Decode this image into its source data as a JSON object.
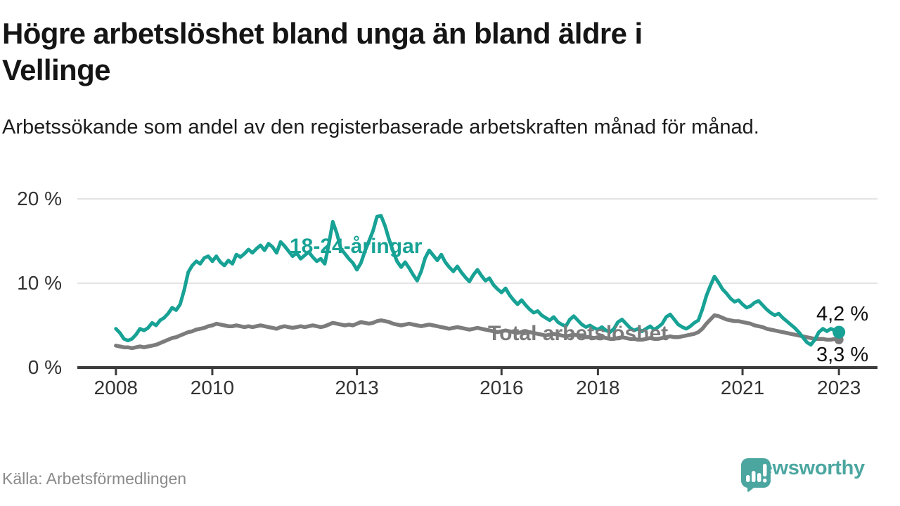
{
  "header": {
    "title_lines": [
      "Högre arbetslöshet bland unga än bland äldre i",
      "Vellinge"
    ],
    "subtitle": "Arbetssökande som andel av den registerbaserade arbetskraften månad för månad."
  },
  "footer": {
    "source": "Källa: Arbetsförmedlingen",
    "brand": "Newsworthy",
    "brand_icon": "speech-bubble-with-bar-chart",
    "brand_color": "#4BA6A0"
  },
  "chart_data": {
    "type": "line",
    "unit": "%",
    "frequency": "monthly",
    "x_start": "2008-01",
    "x_end": "2023-01",
    "xlim": [
      2007.2,
      2023.8
    ],
    "ylim": [
      0,
      20
    ],
    "grid": "horizontal",
    "y_ticks": [
      {
        "value": 0,
        "label": "0 %"
      },
      {
        "value": 10,
        "label": "10 %"
      },
      {
        "value": 20,
        "label": "20 %"
      }
    ],
    "x_ticks": [
      {
        "year": 2008,
        "label": "2008"
      },
      {
        "year": 2010,
        "label": "2010"
      },
      {
        "year": 2013,
        "label": "2013"
      },
      {
        "year": 2016,
        "label": "2016"
      },
      {
        "year": 2018,
        "label": "2018"
      },
      {
        "year": 2021,
        "label": "2021"
      },
      {
        "year": 2023,
        "label": "2023"
      }
    ],
    "series": [
      {
        "name": "18-24-åringar",
        "color": "#17A295",
        "end_value": 4.2,
        "end_label": "4,2 %",
        "values": [
          4.6,
          4.1,
          3.4,
          3.2,
          3.4,
          3.9,
          4.6,
          4.4,
          4.7,
          5.3,
          5.0,
          5.6,
          5.9,
          6.4,
          7.1,
          6.8,
          7.5,
          9.2,
          11.3,
          12.1,
          12.6,
          12.3,
          13.0,
          13.2,
          12.6,
          13.2,
          12.5,
          12.1,
          12.7,
          12.3,
          13.4,
          13.1,
          13.5,
          14.0,
          13.6,
          14.1,
          14.5,
          13.9,
          14.7,
          14.3,
          13.6,
          14.9,
          14.4,
          13.8,
          13.2,
          13.6,
          12.9,
          13.3,
          13.7,
          13.1,
          12.6,
          12.9,
          12.3,
          14.6,
          17.3,
          15.9,
          14.1,
          13.5,
          12.9,
          12.4,
          11.6,
          12.4,
          13.8,
          15.0,
          16.2,
          17.9,
          18.0,
          16.8,
          15.2,
          13.8,
          12.6,
          11.9,
          12.5,
          11.8,
          11.0,
          10.3,
          11.4,
          13.0,
          13.9,
          13.3,
          12.7,
          13.4,
          12.5,
          11.9,
          11.4,
          12.0,
          11.3,
          10.7,
          10.2,
          11.0,
          11.6,
          10.9,
          10.3,
          10.6,
          9.8,
          9.3,
          8.9,
          9.4,
          8.6,
          8.0,
          7.5,
          8.0,
          7.4,
          6.9,
          6.5,
          6.7,
          6.2,
          5.9,
          5.6,
          6.0,
          5.4,
          5.1,
          4.9,
          5.7,
          6.1,
          5.6,
          5.1,
          4.8,
          5.0,
          4.7,
          4.5,
          4.8,
          4.4,
          4.2,
          4.6,
          5.4,
          5.7,
          5.2,
          4.7,
          4.4,
          4.6,
          4.3,
          4.6,
          4.9,
          4.5,
          4.8,
          5.2,
          6.0,
          6.3,
          5.7,
          5.1,
          4.8,
          4.6,
          4.9,
          5.3,
          5.6,
          6.9,
          8.5,
          9.7,
          10.8,
          10.1,
          9.3,
          8.8,
          8.2,
          7.8,
          8.0,
          7.5,
          7.1,
          7.3,
          7.7,
          7.9,
          7.4,
          6.9,
          6.5,
          6.2,
          6.4,
          5.9,
          5.5,
          5.1,
          4.7,
          4.2,
          3.6,
          3.0,
          2.7,
          3.3,
          4.2,
          4.6,
          4.3,
          4.6,
          4.4,
          4.2
        ]
      },
      {
        "name": "Total arbetslöshet",
        "color": "#7C7C7C",
        "end_value": 3.3,
        "end_label": "3,3 %",
        "values": [
          2.6,
          2.5,
          2.4,
          2.4,
          2.3,
          2.4,
          2.5,
          2.4,
          2.5,
          2.6,
          2.7,
          2.9,
          3.1,
          3.3,
          3.5,
          3.6,
          3.8,
          4.0,
          4.2,
          4.3,
          4.5,
          4.6,
          4.7,
          4.9,
          5.0,
          5.2,
          5.1,
          5.0,
          4.9,
          4.9,
          5.0,
          4.9,
          4.8,
          4.9,
          4.8,
          4.9,
          5.0,
          4.9,
          4.8,
          4.7,
          4.6,
          4.8,
          4.9,
          4.8,
          4.7,
          4.8,
          4.9,
          4.8,
          4.9,
          5.0,
          4.9,
          4.8,
          4.9,
          5.1,
          5.3,
          5.2,
          5.1,
          5.0,
          5.1,
          5.0,
          5.2,
          5.4,
          5.3,
          5.2,
          5.3,
          5.5,
          5.6,
          5.5,
          5.4,
          5.2,
          5.1,
          5.0,
          5.1,
          5.2,
          5.1,
          5.0,
          4.9,
          5.0,
          5.1,
          5.0,
          4.9,
          4.8,
          4.7,
          4.6,
          4.7,
          4.8,
          4.7,
          4.6,
          4.5,
          4.6,
          4.7,
          4.6,
          4.5,
          4.4,
          4.3,
          4.2,
          4.3,
          4.4,
          4.3,
          4.2,
          4.1,
          4.2,
          4.3,
          4.2,
          4.1,
          4.0,
          3.9,
          3.8,
          3.9,
          4.0,
          3.9,
          3.8,
          3.7,
          3.8,
          3.9,
          3.8,
          3.7,
          3.6,
          3.6,
          3.5,
          3.6,
          3.6,
          3.5,
          3.4,
          3.4,
          3.5,
          3.6,
          3.5,
          3.4,
          3.4,
          3.3,
          3.3,
          3.4,
          3.5,
          3.4,
          3.4,
          3.5,
          3.6,
          3.7,
          3.6,
          3.6,
          3.7,
          3.8,
          3.9,
          4.0,
          4.2,
          4.6,
          5.2,
          5.7,
          6.2,
          6.1,
          5.9,
          5.7,
          5.6,
          5.5,
          5.5,
          5.4,
          5.3,
          5.2,
          5.0,
          4.9,
          4.8,
          4.6,
          4.5,
          4.4,
          4.3,
          4.2,
          4.1,
          4.0,
          3.9,
          3.8,
          3.7,
          3.6,
          3.5,
          3.4,
          3.4,
          3.4,
          3.3,
          3.3,
          3.4,
          3.3
        ]
      }
    ]
  }
}
